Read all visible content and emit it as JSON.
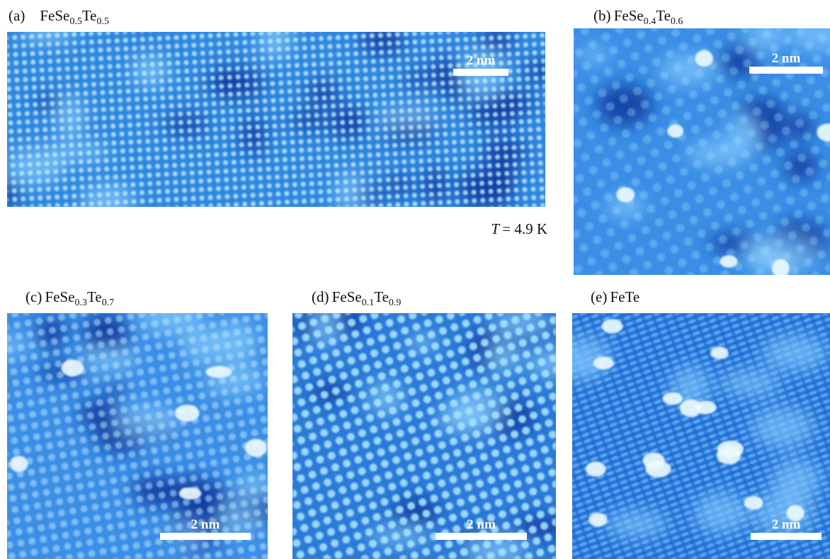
{
  "panels": [
    {
      "letter": "(a)",
      "formula": [
        {
          "base": "FeSe",
          "sub": "0.5"
        },
        {
          "base": "Te",
          "sub": "0.5"
        }
      ],
      "scale_bar": "2 nm"
    },
    {
      "letter": "(b)",
      "formula": [
        {
          "base": "FeSe",
          "sub": "0.4"
        },
        {
          "base": "Te",
          "sub": "0.6"
        }
      ],
      "scale_bar": "2 nm"
    },
    {
      "letter": "(c)",
      "formula": [
        {
          "base": "FeSe",
          "sub": "0.3"
        },
        {
          "base": "Te",
          "sub": "0.7"
        }
      ],
      "scale_bar": "2 nm"
    },
    {
      "letter": "(d)",
      "formula": [
        {
          "base": "FeSe",
          "sub": "0.1"
        },
        {
          "base": "Te",
          "sub": "0.9"
        }
      ],
      "scale_bar": "2 nm"
    },
    {
      "letter": "(e)",
      "formula": [
        {
          "base": "FeTe"
        }
      ],
      "scale_bar": "2 nm"
    }
  ],
  "temperature": {
    "symbol": "T",
    "text": "= 4.9 K"
  }
}
